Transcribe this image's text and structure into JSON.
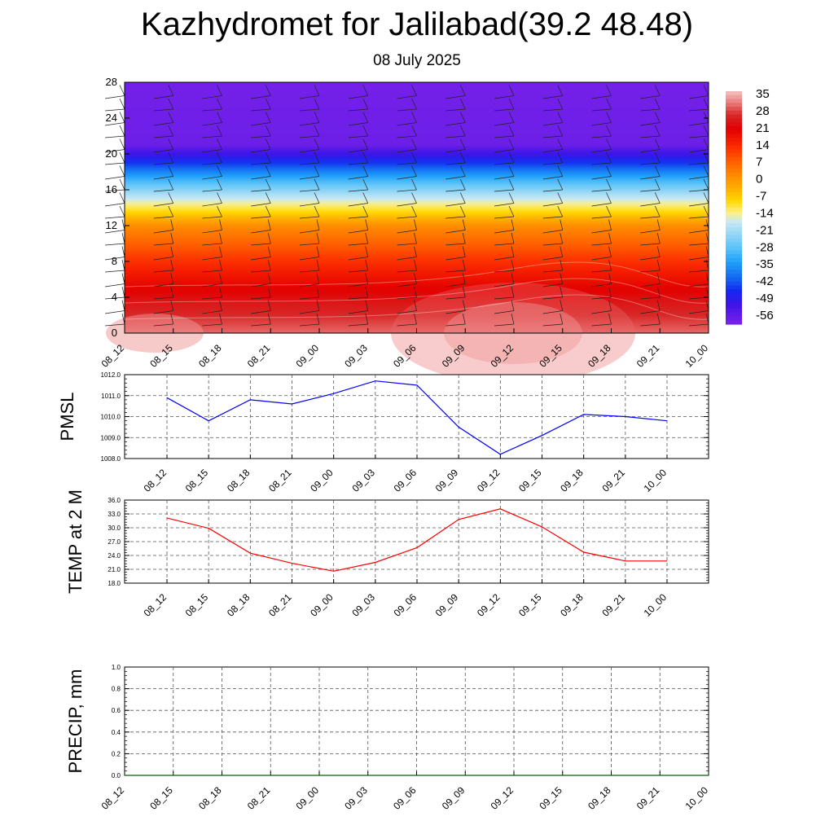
{
  "header": {
    "title": "Kazhydromet for Jalilabad(39.2 48.48)",
    "subtitle": "08 July 2025"
  },
  "time_labels": [
    "08_12",
    "08_15",
    "08_18",
    "08_21",
    "09_00",
    "09_03",
    "09_06",
    "09_09",
    "09_12",
    "09_15",
    "09_18",
    "09_21",
    "10_00"
  ],
  "colors": {
    "pmsl_line": "#0000ff",
    "temp_line": "#ff0000",
    "precip_line": "#006400",
    "cold": "#7b22e8",
    "hot": "#e20000"
  },
  "chart_data": [
    {
      "type": "heatmap",
      "title": "",
      "xlabel": "",
      "ylabel": "",
      "x": [
        "08_12",
        "08_15",
        "08_18",
        "08_21",
        "09_00",
        "09_03",
        "09_06",
        "09_09",
        "09_12",
        "09_15",
        "09_18",
        "09_21",
        "10_00"
      ],
      "ylim": [
        0,
        28
      ],
      "y_ticks": [
        "0",
        "4",
        "8",
        "12",
        "16",
        "20",
        "24",
        "28"
      ],
      "colorbar": {
        "labels": [
          "35",
          "28",
          "21",
          "14",
          "7",
          "0",
          "-7",
          "-14",
          "-21",
          "-28",
          "-35",
          "-42",
          "-49",
          "-56"
        ],
        "range": [
          -60,
          38
        ]
      },
      "temperature_profile": [
        {
          "height": 0,
          "temp": 32
        },
        {
          "height": 4,
          "temp": 24
        },
        {
          "height": 8,
          "temp": 14
        },
        {
          "height": 12,
          "temp": 2
        },
        {
          "height": 13.5,
          "temp": -8
        },
        {
          "height": 15,
          "temp": -17
        },
        {
          "height": 17,
          "temp": -30
        },
        {
          "height": 19,
          "temp": -45
        },
        {
          "height": 21,
          "temp": -58
        },
        {
          "height": 28,
          "temp": -59
        }
      ],
      "wind_barbs": "true"
    },
    {
      "type": "line",
      "ylabel": "PMSL",
      "categories": [
        "08_12",
        "08_15",
        "08_18",
        "08_21",
        "09_00",
        "09_03",
        "09_06",
        "09_09",
        "09_12",
        "09_15",
        "09_18",
        "09_21",
        "10_00"
      ],
      "values": [
        1010.9,
        1009.8,
        1010.8,
        1010.6,
        1011.1,
        1011.7,
        1011.5,
        1009.5,
        1008.2,
        1009.1,
        1010.1,
        1010.0,
        1009.8
      ],
      "ylim": [
        1008.0,
        1012.0
      ],
      "y_ticks": [
        "1008.0",
        "1009.0",
        "1010.0",
        "1011.0",
        "1012.0"
      ],
      "grid": "true"
    },
    {
      "type": "line",
      "ylabel": "TEMP at 2 M",
      "categories": [
        "08_12",
        "08_15",
        "08_18",
        "08_21",
        "09_00",
        "09_03",
        "09_06",
        "09_09",
        "09_12",
        "09_15",
        "09_18",
        "09_21",
        "10_00"
      ],
      "values": [
        32.1,
        29.9,
        24.5,
        22.3,
        20.6,
        22.5,
        25.7,
        31.8,
        34.1,
        30.2,
        24.7,
        22.8,
        22.8
      ],
      "ylim": [
        18.0,
        36.0
      ],
      "y_ticks": [
        "18.0",
        "21.0",
        "24.0",
        "27.0",
        "30.0",
        "33.0",
        "36.0"
      ],
      "grid": "true"
    },
    {
      "type": "line",
      "ylabel": "PRECIP, mm",
      "categories": [
        "08_12",
        "08_15",
        "08_18",
        "08_21",
        "09_00",
        "09_03",
        "09_06",
        "09_09",
        "09_12",
        "09_15",
        "09_18",
        "09_21",
        "10_00"
      ],
      "values": [
        0,
        0,
        0,
        0,
        0,
        0,
        0,
        0,
        0,
        0,
        0,
        0,
        0
      ],
      "ylim": [
        0.0,
        1.0
      ],
      "y_ticks": [
        "0.0",
        "0.2",
        "0.4",
        "0.6",
        "0.8",
        "1.0"
      ],
      "grid": "true"
    }
  ]
}
